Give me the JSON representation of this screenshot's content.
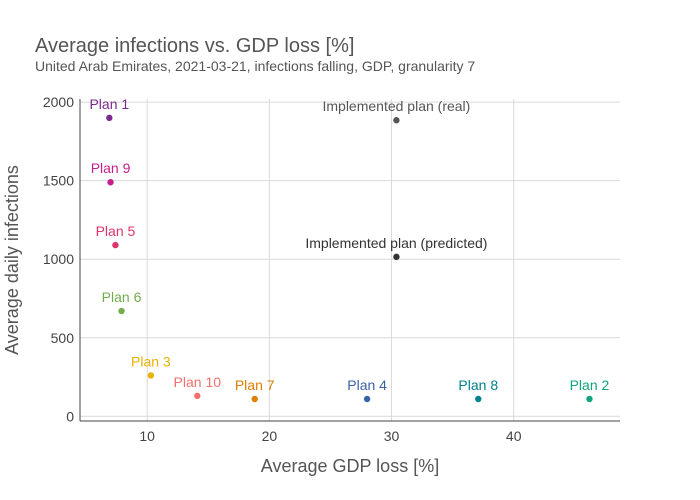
{
  "chart_data": {
    "type": "scatter",
    "title": "Average infections vs. GDP loss [%]",
    "subtitle": "United Arab Emirates, 2021-03-21, infections falling, GDP, granularity 7",
    "xlabel": "Average GDP loss [%]",
    "ylabel": "Average daily infections",
    "xlim": [
      4.5,
      48.7
    ],
    "ylim": [
      -30,
      2020
    ],
    "xticks": [
      10,
      20,
      30,
      40
    ],
    "yticks": [
      0,
      500,
      1000,
      1500,
      2000
    ],
    "grid": true,
    "points": [
      {
        "label": "Plan 1",
        "x": 6.9,
        "y": 1900,
        "color": "#7b2a90"
      },
      {
        "label": "Plan 9",
        "x": 7.0,
        "y": 1490,
        "color": "#c81d8c"
      },
      {
        "label": "Plan 5",
        "x": 7.4,
        "y": 1090,
        "color": "#e0336a"
      },
      {
        "label": "Plan 6",
        "x": 7.9,
        "y": 670,
        "color": "#72ad4c"
      },
      {
        "label": "Plan 3",
        "x": 10.3,
        "y": 260,
        "color": "#e8b200"
      },
      {
        "label": "Plan 10",
        "x": 14.1,
        "y": 130,
        "color": "#f26f6b"
      },
      {
        "label": "Plan 7",
        "x": 18.8,
        "y": 110,
        "color": "#e07f00"
      },
      {
        "label": "Plan 4",
        "x": 28.0,
        "y": 110,
        "color": "#3a62a8"
      },
      {
        "label": "Plan 8",
        "x": 37.1,
        "y": 110,
        "color": "#00818f"
      },
      {
        "label": "Plan 2",
        "x": 46.2,
        "y": 110,
        "color": "#12a47c"
      },
      {
        "label": "Implemented plan (real)",
        "x": 30.4,
        "y": 1885,
        "color": "#555555"
      },
      {
        "label": "Implemented plan (predicted)",
        "x": 30.4,
        "y": 1015,
        "color": "#333333"
      }
    ]
  }
}
